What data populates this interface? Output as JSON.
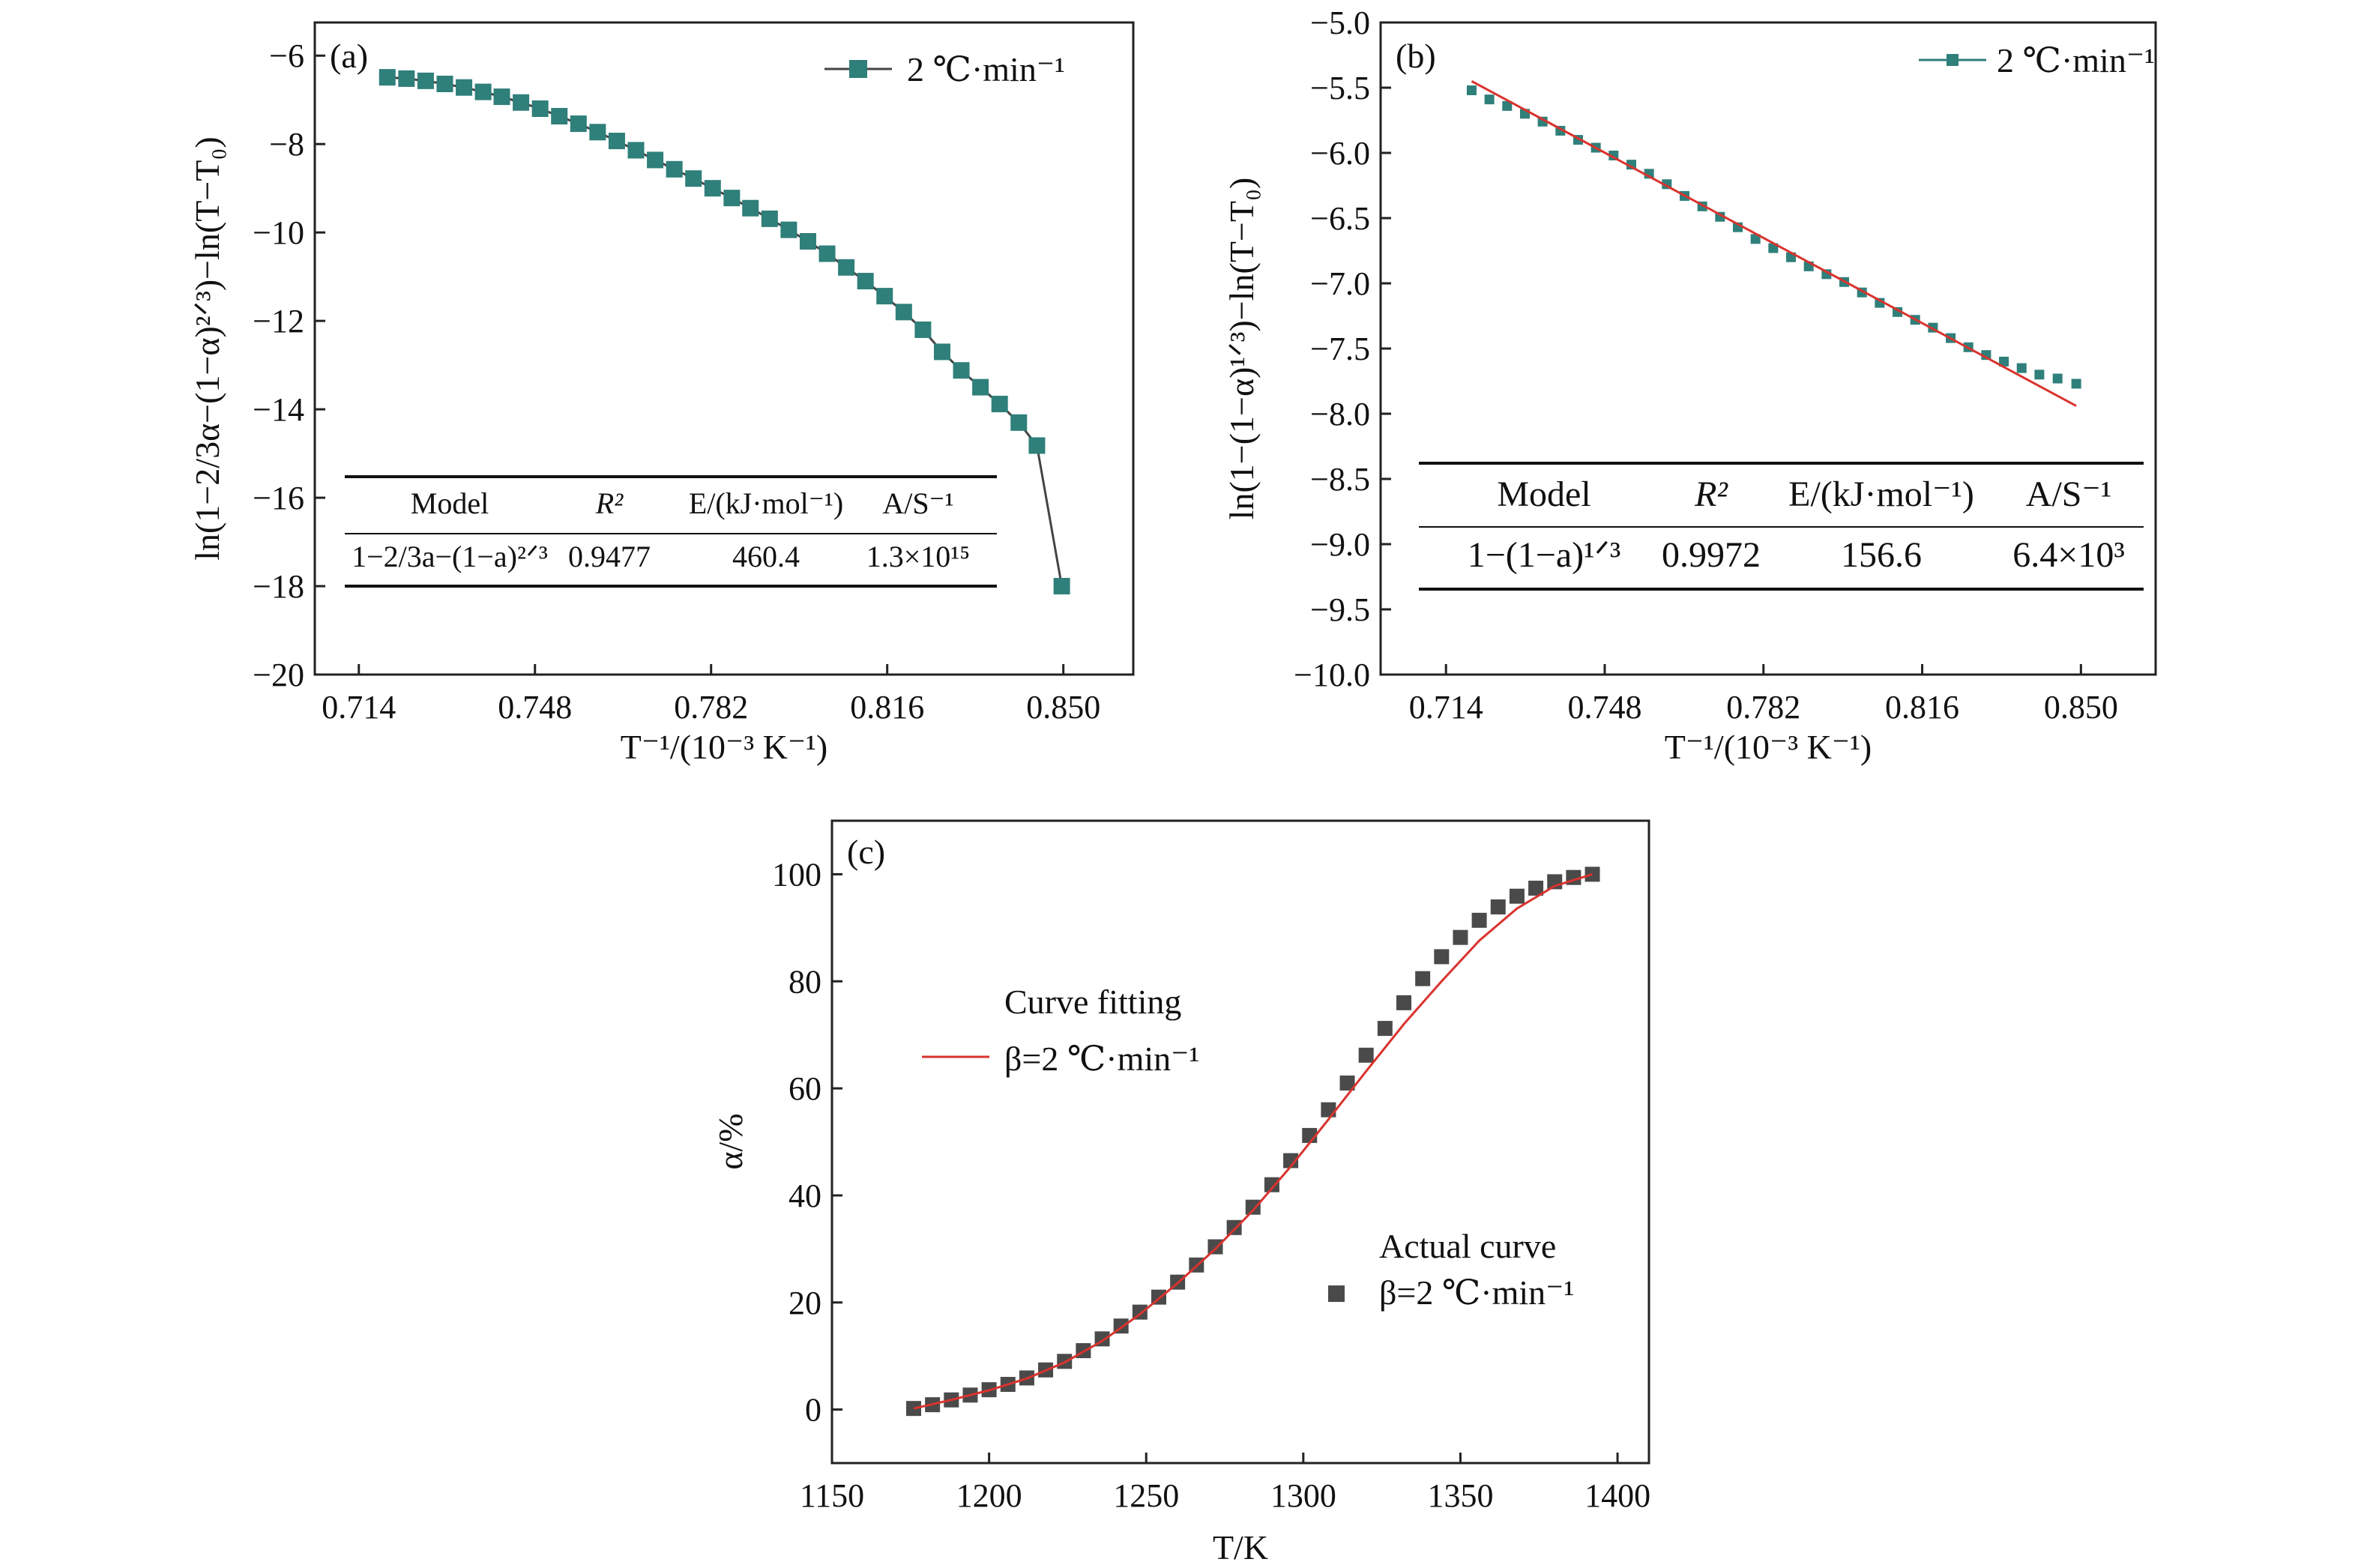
{
  "colors": {
    "teal": "#2f7f7a",
    "red": "#d9332e",
    "dark": "#4a4a4a",
    "axis": "#222222"
  },
  "chart_data": [
    {
      "id": "a",
      "type": "line",
      "panel_label": "(a)",
      "xlabel": "T⁻¹/(10⁻³ K⁻¹)",
      "ylabel": "ln(1−2/3α−(1−α)²ᐟ³)−ln(T−T₀)",
      "xlim": [
        0.7055,
        0.8635
      ],
      "ylim": [
        -20,
        -5.25
      ],
      "xticks": [
        0.714,
        0.748,
        0.782,
        0.816,
        0.85
      ],
      "xtick_labels": [
        "0.714",
        "0.748",
        "0.782",
        "0.816",
        "0.850"
      ],
      "yticks": [
        -20,
        -18,
        -16,
        -14,
        -12,
        -10,
        -8,
        -6
      ],
      "ytick_labels": [
        "−20",
        "−18",
        "−16",
        "−14",
        "−12",
        "−10",
        "−8",
        "−6"
      ],
      "legend": {
        "label": "2 ℃·min⁻¹",
        "position": "top-right"
      },
      "series": [
        {
          "name": "2 ℃·min⁻¹",
          "marker": "square",
          "color": "#2f7f7a",
          "x": [
            0.7195,
            0.7232,
            0.7269,
            0.7306,
            0.7343,
            0.738,
            0.7416,
            0.7453,
            0.749,
            0.7527,
            0.7564,
            0.7601,
            0.7638,
            0.7675,
            0.7712,
            0.7749,
            0.7786,
            0.7823,
            0.786,
            0.7896,
            0.7933,
            0.797,
            0.8007,
            0.8044,
            0.8081,
            0.8118,
            0.8155,
            0.8192,
            0.8229,
            0.8266,
            0.8303,
            0.834,
            0.8377,
            0.8414,
            0.8449,
            0.8497
          ],
          "y": [
            -6.49,
            -6.52,
            -6.57,
            -6.64,
            -6.72,
            -6.82,
            -6.93,
            -7.06,
            -7.2,
            -7.37,
            -7.54,
            -7.73,
            -7.93,
            -8.14,
            -8.36,
            -8.57,
            -8.78,
            -9.0,
            -9.22,
            -9.45,
            -9.69,
            -9.94,
            -10.2,
            -10.48,
            -10.79,
            -11.1,
            -11.44,
            -11.8,
            -12.2,
            -12.7,
            -13.12,
            -13.5,
            -13.88,
            -14.3,
            -14.82,
            -18.0
          ]
        }
      ],
      "table": {
        "headers": [
          "Model",
          "R²",
          "E/(kJ·mol⁻¹)",
          "A/S⁻¹"
        ],
        "row": [
          "1−2/3a−(1−a)²ᐟ³",
          "0.9477",
          "460.4",
          "1.3×10¹⁵"
        ]
      }
    },
    {
      "id": "b",
      "type": "scatter",
      "panel_label": "(b)",
      "xlabel": "T⁻¹/(10⁻³ K⁻¹)",
      "ylabel": "ln(1−(1−α)¹ᐟ³)−ln(T−T₀)",
      "xlim": [
        0.7,
        0.866
      ],
      "ylim": [
        -10.0,
        -5.0
      ],
      "xticks": [
        0.714,
        0.748,
        0.782,
        0.816,
        0.85
      ],
      "xtick_labels": [
        "0.714",
        "0.748",
        "0.782",
        "0.816",
        "0.850"
      ],
      "yticks": [
        -10.0,
        -9.5,
        -9.0,
        -8.5,
        -8.0,
        -7.5,
        -7.0,
        -6.5,
        -6.0,
        -5.5,
        -5.0
      ],
      "ytick_labels": [
        "−10.0",
        "−9.5",
        "−9.0",
        "−8.5",
        "−8.0",
        "−7.5",
        "−7.0",
        "−6.5",
        "−6.0",
        "−5.5",
        "−5.0"
      ],
      "legend": {
        "label": "2 ℃·min⁻¹",
        "position": "top-right"
      },
      "series": [
        {
          "name": "2 ℃·min⁻¹",
          "marker": "square",
          "color": "#2f7f7a",
          "x": [
            0.7195,
            0.7233,
            0.7271,
            0.7309,
            0.7347,
            0.7385,
            0.7423,
            0.7461,
            0.7499,
            0.7537,
            0.7575,
            0.7613,
            0.7651,
            0.7689,
            0.7727,
            0.7765,
            0.7803,
            0.7841,
            0.7879,
            0.7917,
            0.7955,
            0.7993,
            0.8031,
            0.8069,
            0.8107,
            0.8145,
            0.8183,
            0.8221,
            0.8259,
            0.8297,
            0.8335,
            0.8373,
            0.8411,
            0.845,
            0.849
          ],
          "y": [
            -5.52,
            -5.59,
            -5.64,
            -5.7,
            -5.76,
            -5.83,
            -5.9,
            -5.96,
            -6.02,
            -6.09,
            -6.16,
            -6.24,
            -6.33,
            -6.41,
            -6.49,
            -6.57,
            -6.66,
            -6.73,
            -6.8,
            -6.87,
            -6.93,
            -6.99,
            -7.07,
            -7.15,
            -7.22,
            -7.28,
            -7.34,
            -7.42,
            -7.49,
            -7.55,
            -7.6,
            -7.65,
            -7.7,
            -7.73,
            -7.77
          ]
        },
        {
          "name": "",
          "type": "line",
          "color": "#d9332e",
          "x": [
            0.7195,
            0.849
          ],
          "y": [
            -5.45,
            -7.94
          ]
        }
      ],
      "table": {
        "headers": [
          "Model",
          "R²",
          "E/(kJ·mol⁻¹)",
          "A/S⁻¹"
        ],
        "row": [
          "1−(1−a)¹ᐟ³",
          "0.9972",
          "156.6",
          "6.4×10³"
        ]
      }
    },
    {
      "id": "c",
      "type": "scatter",
      "panel_label": "(c)",
      "xlabel": "T/K",
      "ylabel": "α/%",
      "xlim": [
        1150,
        1410
      ],
      "ylim": [
        -10,
        110
      ],
      "xticks": [
        1150,
        1200,
        1250,
        1300,
        1350,
        1400
      ],
      "xtick_labels": [
        "1150",
        "1200",
        "1250",
        "1300",
        "1350",
        "1400"
      ],
      "yticks": [
        0,
        20,
        40,
        60,
        80,
        100
      ],
      "ytick_labels": [
        "0",
        "20",
        "40",
        "60",
        "80",
        "100"
      ],
      "annotations": {
        "fit_title": "Curve fitting",
        "fit_label": "β=2 ℃·min⁻¹",
        "actual_title": "Actual curve",
        "actual_label": "β=2 ℃·min⁻¹"
      },
      "series": [
        {
          "name": "Actual curve",
          "marker": "square",
          "color": "#4a4a4a",
          "x": [
            1176,
            1182,
            1188,
            1194,
            1200,
            1206,
            1212,
            1218,
            1224,
            1230,
            1236,
            1242,
            1248,
            1254,
            1260,
            1266,
            1272,
            1278,
            1284,
            1290,
            1296,
            1302,
            1308,
            1314,
            1320,
            1326,
            1332,
            1338,
            1344,
            1350,
            1356,
            1362,
            1368,
            1374,
            1380,
            1386,
            1392
          ],
          "y": [
            0.2,
            0.9,
            1.8,
            2.7,
            3.7,
            4.7,
            5.9,
            7.4,
            9.0,
            11.0,
            13.2,
            15.6,
            18.2,
            21.0,
            23.8,
            27.0,
            30.4,
            34.0,
            37.8,
            42.0,
            46.5,
            51.2,
            56.0,
            61.0,
            66.2,
            71.2,
            76.0,
            80.5,
            84.6,
            88.2,
            91.4,
            93.9,
            95.9,
            97.4,
            98.6,
            99.4,
            100.0
          ]
        },
        {
          "name": "Curve fitting",
          "type": "line",
          "color": "#d9332e",
          "x": [
            1176,
            1188,
            1200,
            1212,
            1224,
            1236,
            1248,
            1260,
            1272,
            1284,
            1296,
            1308,
            1320,
            1332,
            1344,
            1356,
            1368,
            1380,
            1392
          ],
          "y": [
            0.2,
            1.8,
            3.6,
            5.8,
            8.8,
            12.8,
            17.8,
            23.6,
            30.0,
            37.2,
            45.4,
            54.2,
            63.2,
            72.0,
            80.0,
            87.6,
            93.6,
            97.8,
            100.0
          ]
        }
      ]
    }
  ]
}
